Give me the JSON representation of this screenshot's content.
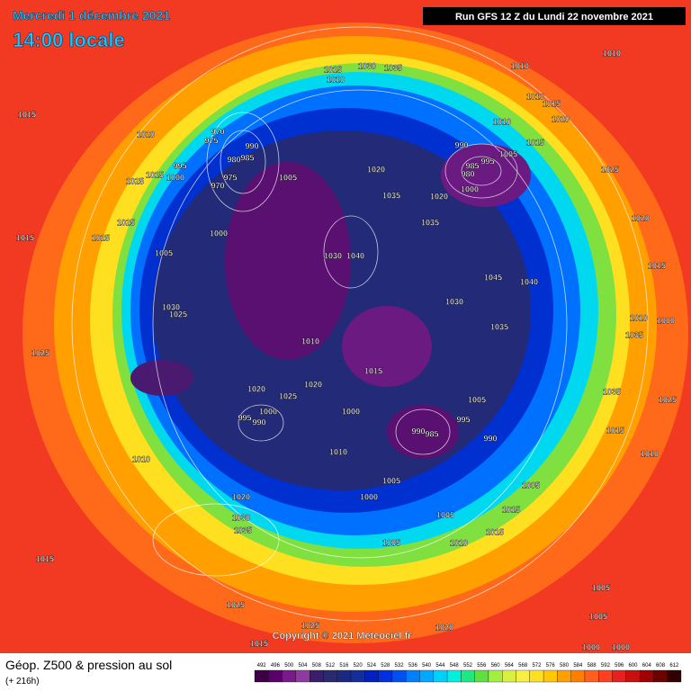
{
  "header": {
    "date": "Mercredi 1 décembre 2021",
    "time": "14:00 locale",
    "run": "Run GFS 12 Z du Lundi 22 novembre 2021"
  },
  "copyright": "Copyright © 2021 Meteociel.fr",
  "footer": {
    "title": "Géop. Z500 & pression au sol",
    "subtitle": "(+ 216h)"
  },
  "scale": {
    "labels": [
      492,
      496,
      500,
      504,
      508,
      512,
      516,
      520,
      524,
      528,
      532,
      536,
      540,
      544,
      548,
      552,
      556,
      560,
      564,
      568,
      572,
      576,
      580,
      584,
      588,
      592,
      596,
      600,
      604,
      608,
      612
    ],
    "colors": [
      "#3d0045",
      "#5a006a",
      "#7a1a8a",
      "#8f3aa0",
      "#3a1e6a",
      "#2a2a70",
      "#1a2a80",
      "#162e9a",
      "#0020c0",
      "#0030e0",
      "#0050f0",
      "#0080ff",
      "#00a8ff",
      "#00d0ff",
      "#00f0e0",
      "#20e880",
      "#60e040",
      "#a0f040",
      "#d8f040",
      "#f8f040",
      "#ffe020",
      "#ffc800",
      "#ffa000",
      "#ff8000",
      "#ff6020",
      "#ff4020",
      "#e82020",
      "#c81010",
      "#a00000",
      "#700000",
      "#300000"
    ]
  },
  "isobar_labels": [
    "1015",
    "1020",
    "975",
    "970",
    "990",
    "985",
    "980",
    "975",
    "970",
    "1005",
    "995",
    "1025",
    "1015",
    "1000",
    "1025",
    "1025",
    "1015",
    "1005",
    "1000",
    "1030",
    "1040",
    "1030",
    "1025",
    "1025",
    "1010",
    "1015",
    "1020",
    "1000",
    "990",
    "985",
    "1005",
    "995",
    "990",
    "1010",
    "1000",
    "1005",
    "1005",
    "1010",
    "1005",
    "1015",
    "1015",
    "1005",
    "1010",
    "1020",
    "1030",
    "1035",
    "1015",
    "1025",
    "1025",
    "1020",
    "1015",
    "1015",
    "1010",
    "1030",
    "1035",
    "1010",
    "1010",
    "1010",
    "1015",
    "1020",
    "1010",
    "1015",
    "990",
    "985",
    "995",
    "980",
    "1000",
    "1005",
    "1020",
    "1035",
    "1020",
    "1035",
    "1025",
    "1020",
    "1015",
    "1045",
    "1040",
    "1030",
    "1035",
    "1010",
    "1035",
    "1000",
    "1035",
    "1015",
    "1010",
    "1025",
    "1005",
    "1005",
    "1000",
    "1000",
    "1020",
    "1025",
    "1000",
    "990",
    "995"
  ]
}
